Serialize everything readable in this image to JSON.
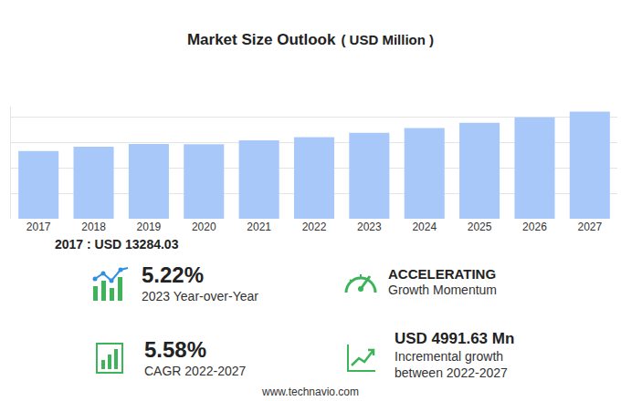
{
  "chart_data": {
    "type": "bar",
    "categories": [
      "2017",
      "2018",
      "2019",
      "2020",
      "2021",
      "2022",
      "2023",
      "2024",
      "2025",
      "2026",
      "2027"
    ],
    "values": [
      13284.03,
      14110,
      14650,
      14600,
      15360,
      16004,
      16839,
      17800,
      18820,
      19880,
      20996
    ],
    "color": "#a8c8fa",
    "ylim": [
      0,
      22000
    ],
    "yticks": [
      0,
      5000,
      10000,
      15000,
      20000
    ],
    "grid": true,
    "tick_labels": "x"
  },
  "header": {
    "title": "Market Size Outlook",
    "unit": "( USD Million )"
  },
  "base": "2017 : USD  13284.03",
  "stats": [
    {
      "value": "5.22%",
      "lines": [
        "2023 Year-over-Year"
      ]
    },
    {
      "value": "ACCELERATING",
      "lines": [
        "Growth Momentum"
      ]
    },
    {
      "value": "5.58%",
      "lines": [
        "CAGR 2022-2027"
      ]
    },
    {
      "value": "USD 4991.63 Mn",
      "lines": [
        "Incremental growth",
        "between 2022-2027"
      ]
    }
  ],
  "footer": "www.technavio.com"
}
